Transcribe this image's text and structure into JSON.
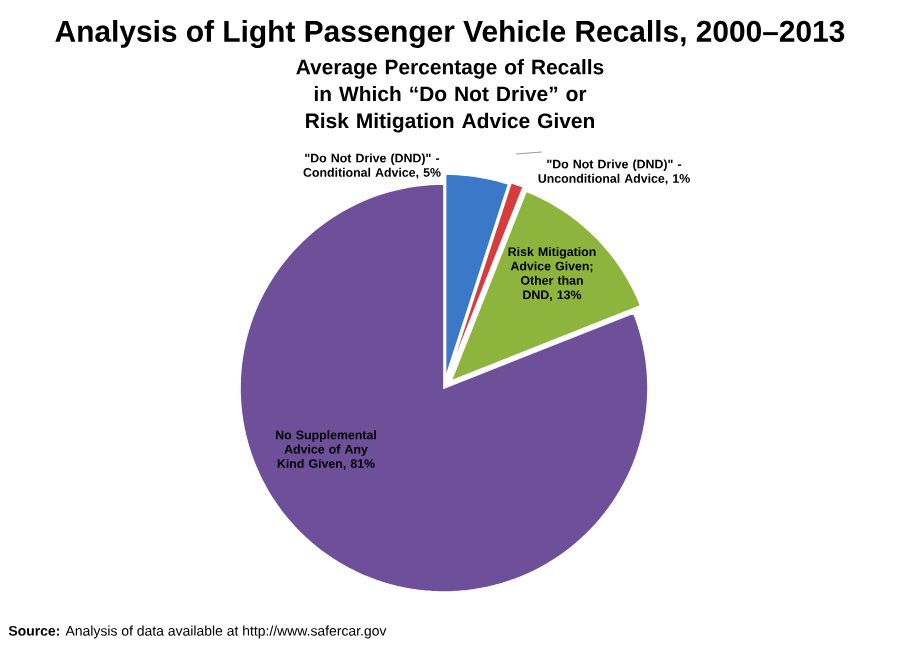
{
  "chart_data": {
    "type": "pie",
    "title": "Analysis of Light Passenger Vehicle Recalls, 2000–2013",
    "subtitle": "Average Percentage of Recalls in Which “Do Not Drive” or Risk Mitigation Advice Given",
    "categories": [
      "\"Do Not Drive (DND)\" - Conditional Advice, 5%",
      "\"Do Not Drive (DND)\" - Unconditional Advice, 1%",
      "Risk Mitigation Advice Given; Other than DND, 13%",
      "No Supplemental Advice of Any Kind Given, 81%"
    ],
    "values": [
      5,
      1,
      13,
      81
    ],
    "colors": [
      "#3b78c8",
      "#d83b3b",
      "#8db43c",
      "#6e4f9a"
    ],
    "annotations": [
      "**Source:** Analysis of data available at http://www.safercar.gov"
    ]
  }
}
